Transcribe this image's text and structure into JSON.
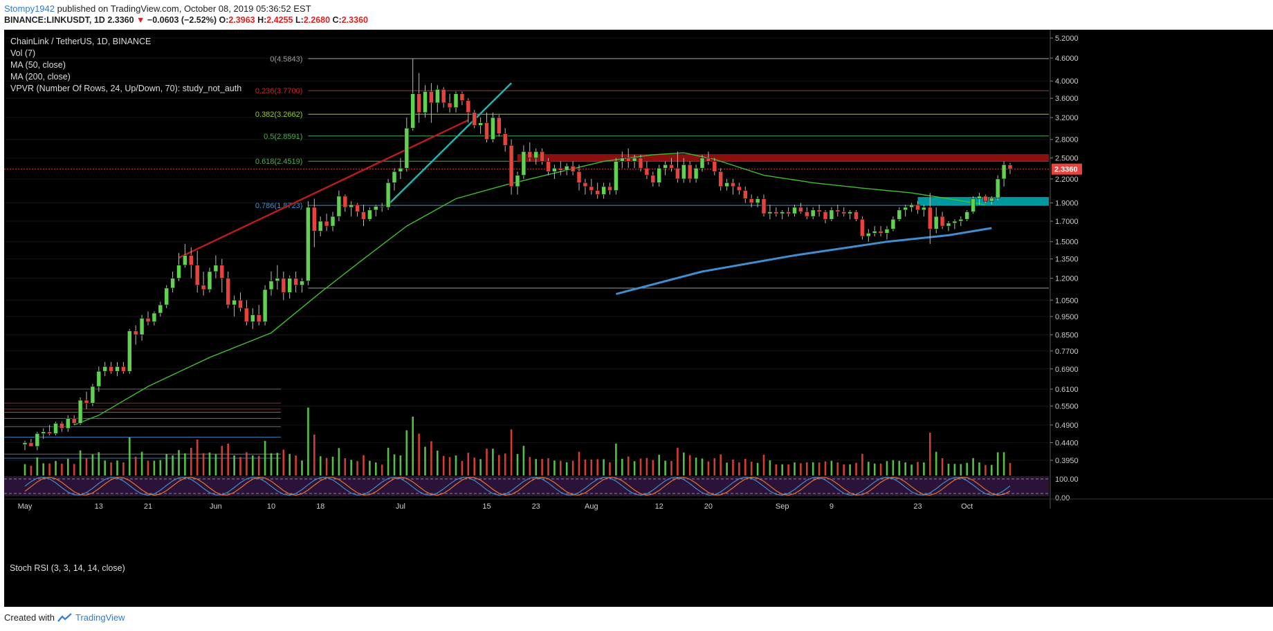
{
  "header": {
    "author": "Stompy1942",
    "published_text": "published on TradingView.com, October 08, 2019 05:36:52 EST",
    "symbol": "BINANCE:LINKUSDT, 1D",
    "last": "2.3360",
    "change": "−0.0603 (−2.52%)",
    "o_label": "O:",
    "o": "2.3963",
    "h_label": "H:",
    "h": "2.4255",
    "l_label": "L:",
    "l": "2.2680",
    "c_label": "C:",
    "c": "2.3360"
  },
  "legend": {
    "title": "ChainLink / TetherUS, 1D, BINANCE",
    "vol": "Vol (7)",
    "ma50": "MA (50, close)",
    "ma200": "MA (200, close)",
    "vpvr": "VPVR (Number Of Rows, 24, Up/Down, 70): study_not_auth"
  },
  "rsi": {
    "label": "Stoch RSI (3, 3, 14, 14, close)",
    "ticks": [
      "100.00",
      "0.00"
    ]
  },
  "footer": {
    "text": "Created with",
    "brand": "TradingView"
  },
  "colors": {
    "up": "#5fd34f",
    "down": "#e8423a",
    "ma50": "#3fbf2e",
    "ma200": "#3f8fd0",
    "fib_red": "#c62828",
    "fib_green": "#4caf50",
    "fib_blue": "#3f8fd0",
    "zone_red": "#9b1111",
    "zone_cyan": "#00a8b0",
    "trend_red": "#b71c1c",
    "trend_cyan": "#1fb5b5"
  },
  "chart_data": {
    "type": "candlestick",
    "title": "ChainLink / TetherUS, 1D, BINANCE",
    "x_ticks": [
      {
        "label": "May",
        "day": 0
      },
      {
        "label": "13",
        "day": 12
      },
      {
        "label": "21",
        "day": 20
      },
      {
        "label": "Jun",
        "day": 31
      },
      {
        "label": "10",
        "day": 40
      },
      {
        "label": "18",
        "day": 48
      },
      {
        "label": "Jul",
        "day": 61
      },
      {
        "label": "15",
        "day": 75
      },
      {
        "label": "23",
        "day": 83
      },
      {
        "label": "Aug",
        "day": 92
      },
      {
        "label": "12",
        "day": 103
      },
      {
        "label": "20",
        "day": 111
      },
      {
        "label": "Sep",
        "day": 123
      },
      {
        "label": "9",
        "day": 131
      },
      {
        "label": "23",
        "day": 145
      },
      {
        "label": "Oct",
        "day": 153
      }
    ],
    "y_ticks": [
      "5.2000",
      "4.6000",
      "4.0000",
      "3.6000",
      "3.2000",
      "2.8000",
      "2.5000",
      "2.2000",
      "1.9000",
      "1.7000",
      "1.5000",
      "1.3500",
      "1.2000",
      "1.0500",
      "0.9500",
      "0.8500",
      "0.7700",
      "0.6900",
      "0.6100",
      "0.5500",
      "0.4900",
      "0.4400",
      "0.3950"
    ],
    "y_scale": "log",
    "ylim": [
      0.36,
      5.2
    ],
    "last_price_label": "2.3360",
    "fib_levels": [
      {
        "label": "0(4.5843)",
        "value": 4.5843,
        "color": "#9e9e9e"
      },
      {
        "label": "0.236(3.7700)",
        "value": 3.77,
        "color": "#c62828"
      },
      {
        "label": "0.382(3.2662)",
        "value": 3.2662,
        "color": "#9ccc2a"
      },
      {
        "label": "0.5(2.8591)",
        "value": 2.8591,
        "color": "#4caf50"
      },
      {
        "label": "0.618(2.4519)",
        "value": 2.4519,
        "color": "#4caf50"
      },
      {
        "label": "0.786(1.8723)",
        "value": 1.8723,
        "color": "#3f8fd0"
      },
      {
        "label": "",
        "value": 1.13,
        "color": "#9e9e9e"
      }
    ],
    "zones": [
      {
        "name": "resistance",
        "from": 2.45,
        "to": 2.56,
        "x_start_day": 80,
        "color": "#9b1111"
      },
      {
        "name": "support",
        "from": 1.87,
        "to": 1.97,
        "x_start_day": 145,
        "color": "#00a8b0"
      }
    ],
    "ohlc": [
      [
        0.435,
        0.445,
        0.42,
        0.44
      ],
      [
        0.44,
        0.45,
        0.43,
        0.43
      ],
      [
        0.43,
        0.47,
        0.42,
        0.465
      ],
      [
        0.465,
        0.48,
        0.45,
        0.47
      ],
      [
        0.47,
        0.49,
        0.46,
        0.465
      ],
      [
        0.465,
        0.5,
        0.46,
        0.495
      ],
      [
        0.495,
        0.5,
        0.47,
        0.48
      ],
      [
        0.48,
        0.52,
        0.47,
        0.51
      ],
      [
        0.51,
        0.52,
        0.49,
        0.495
      ],
      [
        0.495,
        0.58,
        0.49,
        0.57
      ],
      [
        0.57,
        0.6,
        0.54,
        0.56
      ],
      [
        0.56,
        0.63,
        0.55,
        0.62
      ],
      [
        0.62,
        0.7,
        0.6,
        0.68
      ],
      [
        0.68,
        0.72,
        0.66,
        0.7
      ],
      [
        0.7,
        0.72,
        0.67,
        0.68
      ],
      [
        0.68,
        0.72,
        0.66,
        0.7
      ],
      [
        0.7,
        0.72,
        0.67,
        0.68
      ],
      [
        0.68,
        0.88,
        0.67,
        0.87
      ],
      [
        0.87,
        0.9,
        0.8,
        0.85
      ],
      [
        0.85,
        0.96,
        0.82,
        0.94
      ],
      [
        0.94,
        0.98,
        0.9,
        0.92
      ],
      [
        0.92,
        0.98,
        0.9,
        0.97
      ],
      [
        0.97,
        1.04,
        0.95,
        1.02
      ],
      [
        1.02,
        1.15,
        1.0,
        1.13
      ],
      [
        1.13,
        1.25,
        1.1,
        1.2
      ],
      [
        1.2,
        1.4,
        1.18,
        1.3
      ],
      [
        1.3,
        1.48,
        1.28,
        1.38
      ],
      [
        1.38,
        1.45,
        1.2,
        1.3
      ],
      [
        1.3,
        1.42,
        1.1,
        1.15
      ],
      [
        1.15,
        1.25,
        1.08,
        1.12
      ],
      [
        1.12,
        1.28,
        1.1,
        1.25
      ],
      [
        1.25,
        1.38,
        1.2,
        1.3
      ],
      [
        1.3,
        1.35,
        1.1,
        1.2
      ],
      [
        1.2,
        1.25,
        1.0,
        1.02
      ],
      [
        1.02,
        1.08,
        0.95,
        1.05
      ],
      [
        1.05,
        1.1,
        0.98,
        1.0
      ],
      [
        1.0,
        1.05,
        0.9,
        0.92
      ],
      [
        0.92,
        1.0,
        0.88,
        0.96
      ],
      [
        0.96,
        1.02,
        0.9,
        0.92
      ],
      [
        0.92,
        1.15,
        0.9,
        1.12
      ],
      [
        1.12,
        1.25,
        1.08,
        1.18
      ],
      [
        1.18,
        1.3,
        1.12,
        1.2
      ],
      [
        1.2,
        1.25,
        1.05,
        1.1
      ],
      [
        1.1,
        1.22,
        1.06,
        1.2
      ],
      [
        1.2,
        1.25,
        1.1,
        1.15
      ],
      [
        1.15,
        1.2,
        1.1,
        1.18
      ],
      [
        1.18,
        1.92,
        1.15,
        1.85
      ],
      [
        1.85,
        1.95,
        1.45,
        1.6
      ],
      [
        1.6,
        1.75,
        1.55,
        1.7
      ],
      [
        1.7,
        1.78,
        1.6,
        1.65
      ],
      [
        1.65,
        1.8,
        1.6,
        1.75
      ],
      [
        1.75,
        2.05,
        1.7,
        1.98
      ],
      [
        1.98,
        2.0,
        1.8,
        1.85
      ],
      [
        1.85,
        1.92,
        1.75,
        1.88
      ],
      [
        1.88,
        1.9,
        1.75,
        1.8
      ],
      [
        1.8,
        1.88,
        1.65,
        1.72
      ],
      [
        1.72,
        1.85,
        1.7,
        1.82
      ],
      [
        1.82,
        1.88,
        1.75,
        1.86
      ],
      [
        1.86,
        1.9,
        1.8,
        1.85
      ],
      [
        1.85,
        2.2,
        1.82,
        2.15
      ],
      [
        2.15,
        2.35,
        2.05,
        2.3
      ],
      [
        2.3,
        2.5,
        2.2,
        2.35
      ],
      [
        2.35,
        3.2,
        2.3,
        3.0
      ],
      [
        3.0,
        4.58,
        2.95,
        3.7
      ],
      [
        3.7,
        4.2,
        3.1,
        3.3
      ],
      [
        3.3,
        3.9,
        3.2,
        3.75
      ],
      [
        3.75,
        3.95,
        3.1,
        3.5
      ],
      [
        3.5,
        3.9,
        3.3,
        3.8
      ],
      [
        3.8,
        3.85,
        3.4,
        3.5
      ],
      [
        3.5,
        3.7,
        3.3,
        3.4
      ],
      [
        3.4,
        3.75,
        3.3,
        3.7
      ],
      [
        3.7,
        3.75,
        3.45,
        3.55
      ],
      [
        3.55,
        3.6,
        3.1,
        3.3
      ],
      [
        3.3,
        3.35,
        3.0,
        3.05
      ],
      [
        3.05,
        3.2,
        2.9,
        3.1
      ],
      [
        3.1,
        3.3,
        2.75,
        2.8
      ],
      [
        2.8,
        3.3,
        2.75,
        3.2
      ],
      [
        3.2,
        3.25,
        2.85,
        2.9
      ],
      [
        2.9,
        3.0,
        2.6,
        2.7
      ],
      [
        2.7,
        2.8,
        2.0,
        2.1
      ],
      [
        2.1,
        2.3,
        2.0,
        2.25
      ],
      [
        2.25,
        2.7,
        2.2,
        2.6
      ],
      [
        2.6,
        2.75,
        2.45,
        2.5
      ],
      [
        2.5,
        2.65,
        2.4,
        2.6
      ],
      [
        2.6,
        2.65,
        2.4,
        2.45
      ],
      [
        2.45,
        2.5,
        2.25,
        2.3
      ],
      [
        2.3,
        2.4,
        2.2,
        2.35
      ],
      [
        2.35,
        2.45,
        2.25,
        2.32
      ],
      [
        2.32,
        2.42,
        2.25,
        2.38
      ],
      [
        2.38,
        2.45,
        2.25,
        2.3
      ],
      [
        2.3,
        2.4,
        2.05,
        2.15
      ],
      [
        2.15,
        2.2,
        2.0,
        2.1
      ],
      [
        2.1,
        2.2,
        2.0,
        2.05
      ],
      [
        2.05,
        2.15,
        1.95,
        2.0
      ],
      [
        2.0,
        2.15,
        1.95,
        2.1
      ],
      [
        2.1,
        2.15,
        2.0,
        2.05
      ],
      [
        2.05,
        2.5,
        2.0,
        2.45
      ],
      [
        2.45,
        2.6,
        2.35,
        2.5
      ],
      [
        2.5,
        2.65,
        2.35,
        2.45
      ],
      [
        2.45,
        2.55,
        2.35,
        2.5
      ],
      [
        2.5,
        2.55,
        2.3,
        2.35
      ],
      [
        2.35,
        2.45,
        2.2,
        2.25
      ],
      [
        2.25,
        2.3,
        2.1,
        2.15
      ],
      [
        2.15,
        2.4,
        2.1,
        2.35
      ],
      [
        2.35,
        2.45,
        2.25,
        2.4
      ],
      [
        2.4,
        2.5,
        2.3,
        2.35
      ],
      [
        2.35,
        2.6,
        2.15,
        2.2
      ],
      [
        2.2,
        2.5,
        2.15,
        2.4
      ],
      [
        2.4,
        2.45,
        2.15,
        2.2
      ],
      [
        2.2,
        2.4,
        2.15,
        2.35
      ],
      [
        2.35,
        2.55,
        2.3,
        2.5
      ],
      [
        2.5,
        2.6,
        2.4,
        2.45
      ],
      [
        2.45,
        2.5,
        2.25,
        2.3
      ],
      [
        2.3,
        2.35,
        2.05,
        2.1
      ],
      [
        2.1,
        2.2,
        2.05,
        2.15
      ],
      [
        2.15,
        2.2,
        2.0,
        2.1
      ],
      [
        2.1,
        2.15,
        2.0,
        2.05
      ],
      [
        2.05,
        2.1,
        1.9,
        1.95
      ],
      [
        1.95,
        2.0,
        1.85,
        1.9
      ],
      [
        1.9,
        1.98,
        1.85,
        1.95
      ],
      [
        1.95,
        2.0,
        1.75,
        1.78
      ],
      [
        1.78,
        1.88,
        1.72,
        1.8
      ],
      [
        1.8,
        1.85,
        1.75,
        1.78
      ],
      [
        1.78,
        1.82,
        1.72,
        1.8
      ],
      [
        1.8,
        1.85,
        1.75,
        1.78
      ],
      [
        1.78,
        1.88,
        1.75,
        1.85
      ],
      [
        1.85,
        1.9,
        1.78,
        1.8
      ],
      [
        1.8,
        1.85,
        1.72,
        1.75
      ],
      [
        1.75,
        1.85,
        1.72,
        1.82
      ],
      [
        1.82,
        1.88,
        1.75,
        1.8
      ],
      [
        1.8,
        1.82,
        1.68,
        1.72
      ],
      [
        1.72,
        1.85,
        1.7,
        1.82
      ],
      [
        1.82,
        1.88,
        1.75,
        1.8
      ],
      [
        1.8,
        1.85,
        1.75,
        1.78
      ],
      [
        1.78,
        1.82,
        1.72,
        1.8
      ],
      [
        1.8,
        1.82,
        1.7,
        1.72
      ],
      [
        1.72,
        1.75,
        1.52,
        1.55
      ],
      [
        1.55,
        1.62,
        1.5,
        1.58
      ],
      [
        1.58,
        1.65,
        1.55,
        1.6
      ],
      [
        1.6,
        1.65,
        1.55,
        1.58
      ],
      [
        1.58,
        1.65,
        1.52,
        1.62
      ],
      [
        1.62,
        1.75,
        1.6,
        1.72
      ],
      [
        1.72,
        1.85,
        1.7,
        1.82
      ],
      [
        1.82,
        1.88,
        1.75,
        1.85
      ],
      [
        1.85,
        1.9,
        1.8,
        1.88
      ],
      [
        1.88,
        1.92,
        1.78,
        1.82
      ],
      [
        1.82,
        1.88,
        1.75,
        1.85
      ],
      [
        1.85,
        2.02,
        1.48,
        1.62
      ],
      [
        1.62,
        1.85,
        1.58,
        1.75
      ],
      [
        1.75,
        1.8,
        1.62,
        1.65
      ],
      [
        1.65,
        1.7,
        1.6,
        1.68
      ],
      [
        1.68,
        1.72,
        1.62,
        1.7
      ],
      [
        1.7,
        1.75,
        1.65,
        1.72
      ],
      [
        1.72,
        1.82,
        1.7,
        1.8
      ],
      [
        1.8,
        1.98,
        1.78,
        1.95
      ],
      [
        1.95,
        2.02,
        1.88,
        1.98
      ],
      [
        1.98,
        2.0,
        1.9,
        1.92
      ],
      [
        1.92,
        1.98,
        1.88,
        1.96
      ],
      [
        1.96,
        2.25,
        1.93,
        2.2
      ],
      [
        2.2,
        2.45,
        2.1,
        2.4
      ],
      [
        2.3963,
        2.4255,
        2.268,
        2.336
      ]
    ],
    "ma50": [
      [
        8,
        0.49
      ],
      [
        12,
        0.52
      ],
      [
        20,
        0.62
      ],
      [
        30,
        0.74
      ],
      [
        40,
        0.86
      ],
      [
        48,
        1.1
      ],
      [
        55,
        1.35
      ],
      [
        62,
        1.65
      ],
      [
        70,
        1.95
      ],
      [
        78,
        2.12
      ],
      [
        86,
        2.28
      ],
      [
        94,
        2.45
      ],
      [
        102,
        2.55
      ],
      [
        107,
        2.58
      ],
      [
        112,
        2.48
      ],
      [
        120,
        2.25
      ],
      [
        128,
        2.15
      ],
      [
        136,
        2.08
      ],
      [
        144,
        2.02
      ],
      [
        150,
        1.95
      ],
      [
        156,
        1.88
      ]
    ],
    "ma200": [
      [
        96,
        1.09
      ],
      [
        110,
        1.25
      ],
      [
        125,
        1.38
      ],
      [
        140,
        1.5
      ],
      [
        150,
        1.56
      ],
      [
        157,
        1.63
      ]
    ]
  }
}
